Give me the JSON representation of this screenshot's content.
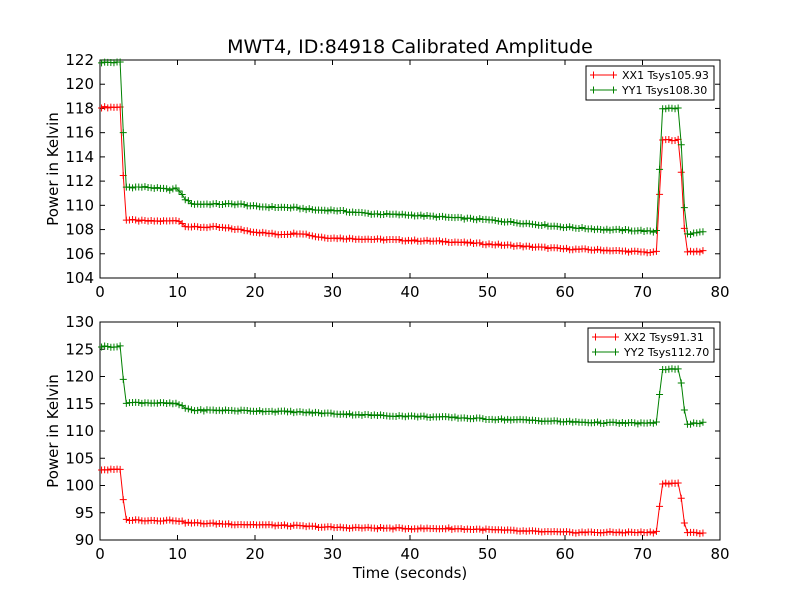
{
  "figure": {
    "title": "MWT4, ID:84918 Calibrated Amplitude"
  },
  "colors": {
    "red": "#ff0000",
    "green": "#008000"
  },
  "chart_data": [
    {
      "type": "line",
      "marker": "plus",
      "xlabel": "",
      "ylabel": "Power in Kelvin",
      "xlim": [
        0,
        80
      ],
      "ylim": [
        104,
        122
      ],
      "xticks": [
        0,
        10,
        20,
        30,
        40,
        50,
        60,
        70,
        80
      ],
      "yticks": [
        104,
        106,
        108,
        110,
        112,
        114,
        116,
        118,
        120,
        122
      ],
      "legend_position": "top-right",
      "grid": false,
      "x_range": [
        0.2,
        78
      ],
      "sample_step": 0.4,
      "series": [
        {
          "name": "XX1 Tsys105.93",
          "color": "#ff0000",
          "points": [
            [
              0.2,
              118.1
            ],
            [
              2.6,
              118.1
            ],
            [
              3.0,
              112.5
            ],
            [
              3.4,
              108.8
            ],
            [
              6,
              108.7
            ],
            [
              9,
              108.7
            ],
            [
              10,
              108.8
            ],
            [
              11,
              108.3
            ],
            [
              12,
              108.2
            ],
            [
              15,
              108.2
            ],
            [
              18,
              108.0
            ],
            [
              20,
              107.8
            ],
            [
              23,
              107.6
            ],
            [
              26,
              107.7
            ],
            [
              28,
              107.4
            ],
            [
              30,
              107.3
            ],
            [
              35,
              107.2
            ],
            [
              40,
              107.1
            ],
            [
              45,
              107.0
            ],
            [
              50,
              106.8
            ],
            [
              55,
              106.6
            ],
            [
              60,
              106.4
            ],
            [
              65,
              106.3
            ],
            [
              68,
              106.2
            ],
            [
              71.5,
              106.1
            ],
            [
              72.0,
              106.3
            ],
            [
              72.4,
              115.4
            ],
            [
              74.8,
              115.4
            ],
            [
              75.2,
              110.0
            ],
            [
              75.6,
              106.2
            ],
            [
              78,
              106.2
            ]
          ]
        },
        {
          "name": "YY1 Tsys108.30",
          "color": "#008000",
          "points": [
            [
              0.2,
              121.8
            ],
            [
              2.6,
              121.8
            ],
            [
              3.0,
              116.0
            ],
            [
              3.4,
              111.5
            ],
            [
              6,
              111.5
            ],
            [
              9,
              111.3
            ],
            [
              10,
              111.4
            ],
            [
              11,
              110.5
            ],
            [
              12,
              110.1
            ],
            [
              15,
              110.1
            ],
            [
              18,
              110.1
            ],
            [
              20,
              109.9
            ],
            [
              25,
              109.8
            ],
            [
              28,
              109.6
            ],
            [
              30,
              109.6
            ],
            [
              35,
              109.3
            ],
            [
              40,
              109.2
            ],
            [
              45,
              109.0
            ],
            [
              50,
              108.8
            ],
            [
              55,
              108.5
            ],
            [
              60,
              108.2
            ],
            [
              65,
              108.0
            ],
            [
              70,
              107.9
            ],
            [
              71.5,
              107.8
            ],
            [
              72.0,
              108.0
            ],
            [
              72.4,
              118.0
            ],
            [
              74.8,
              118.0
            ],
            [
              75.2,
              112.0
            ],
            [
              75.6,
              107.6
            ],
            [
              78,
              107.8
            ]
          ]
        }
      ]
    },
    {
      "type": "line",
      "marker": "plus",
      "xlabel": "Time (seconds)",
      "ylabel": "Power in Kelvin",
      "xlim": [
        0,
        80
      ],
      "ylim": [
        90,
        130
      ],
      "xticks": [
        0,
        10,
        20,
        30,
        40,
        50,
        60,
        70,
        80
      ],
      "yticks": [
        90,
        95,
        100,
        105,
        110,
        115,
        120,
        125,
        130
      ],
      "legend_position": "top-right",
      "grid": false,
      "x_range": [
        0.2,
        78
      ],
      "sample_step": 0.4,
      "series": [
        {
          "name": "XX2 Tsys91.31",
          "color": "#ff0000",
          "points": [
            [
              0.2,
              102.9
            ],
            [
              2.6,
              102.9
            ],
            [
              3.0,
              97.5
            ],
            [
              3.4,
              93.7
            ],
            [
              6,
              93.6
            ],
            [
              10,
              93.6
            ],
            [
              11,
              93.2
            ],
            [
              12,
              93.1
            ],
            [
              15,
              93.0
            ],
            [
              20,
              92.8
            ],
            [
              25,
              92.6
            ],
            [
              30,
              92.3
            ],
            [
              35,
              92.2
            ],
            [
              40,
              92.1
            ],
            [
              45,
              92.1
            ],
            [
              50,
              91.9
            ],
            [
              55,
              91.6
            ],
            [
              60,
              91.4
            ],
            [
              65,
              91.4
            ],
            [
              71.5,
              91.4
            ],
            [
              72.0,
              91.8
            ],
            [
              72.4,
              100.4
            ],
            [
              74.8,
              100.4
            ],
            [
              75.2,
              95.0
            ],
            [
              75.6,
              91.3
            ],
            [
              78,
              91.3
            ]
          ]
        },
        {
          "name": "YY2 Tsys112.70",
          "color": "#008000",
          "points": [
            [
              0.2,
              125.5
            ],
            [
              2.6,
              125.5
            ],
            [
              3.0,
              119.5
            ],
            [
              3.4,
              115.2
            ],
            [
              6,
              115.2
            ],
            [
              10,
              115.0
            ],
            [
              11,
              114.2
            ],
            [
              12,
              113.8
            ],
            [
              15,
              113.8
            ],
            [
              20,
              113.7
            ],
            [
              25,
              113.5
            ],
            [
              30,
              113.2
            ],
            [
              35,
              112.9
            ],
            [
              40,
              112.7
            ],
            [
              45,
              112.5
            ],
            [
              50,
              112.2
            ],
            [
              55,
              112.0
            ],
            [
              60,
              111.7
            ],
            [
              65,
              111.5
            ],
            [
              71.5,
              111.4
            ],
            [
              72.0,
              112.0
            ],
            [
              72.4,
              121.3
            ],
            [
              74.8,
              121.3
            ],
            [
              75.2,
              116.5
            ],
            [
              75.6,
              111.3
            ],
            [
              78,
              111.5
            ]
          ]
        }
      ]
    }
  ]
}
